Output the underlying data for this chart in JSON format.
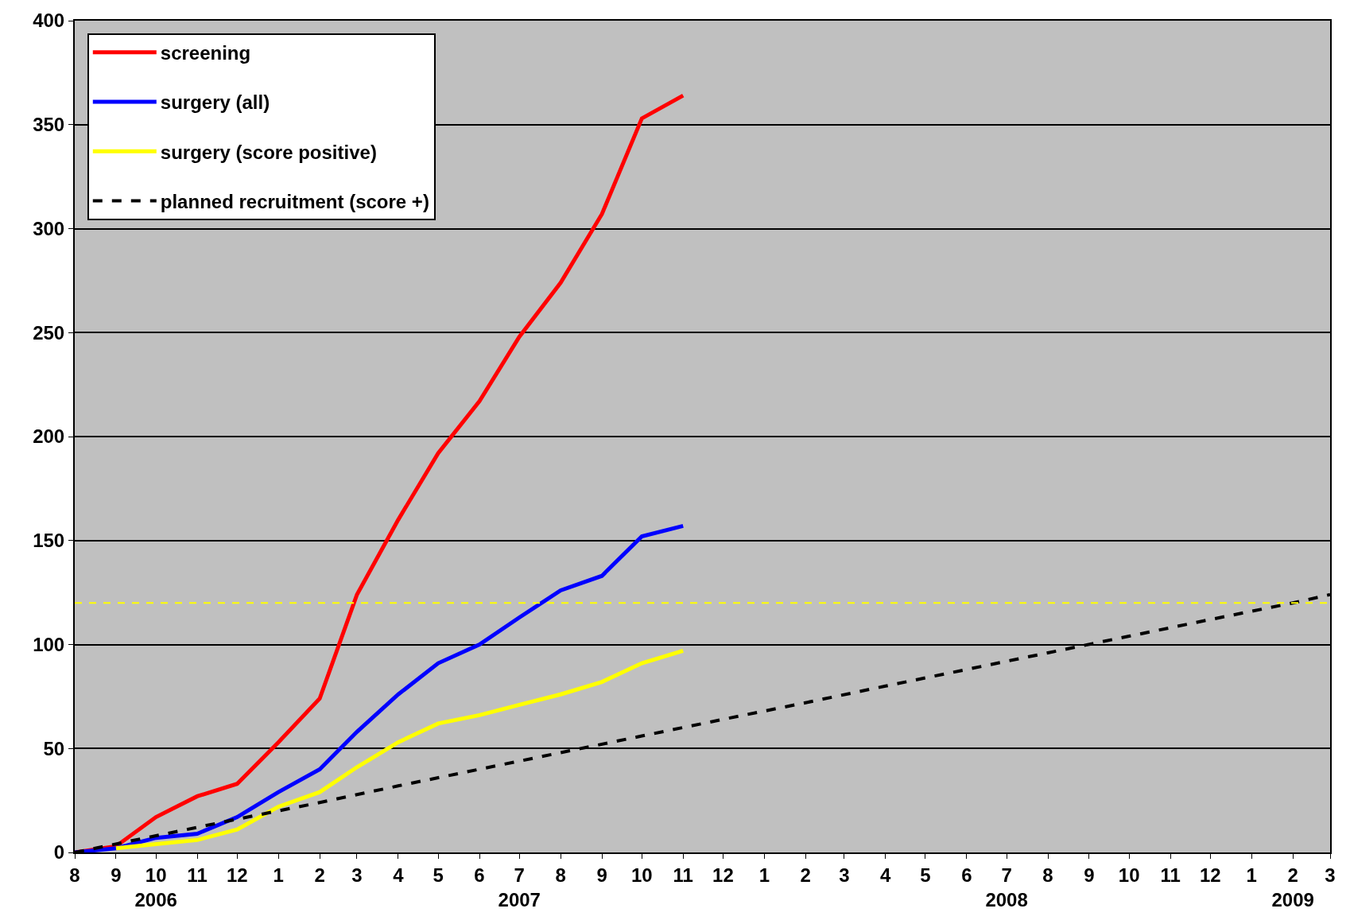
{
  "chart_data": {
    "type": "line",
    "x": [
      "2006-08",
      "2006-09",
      "2006-10",
      "2006-11",
      "2006-12",
      "2007-01",
      "2007-02",
      "2007-03",
      "2007-04",
      "2007-05",
      "2007-06",
      "2007-07",
      "2007-08",
      "2007-09",
      "2007-10",
      "2007-11"
    ],
    "series": [
      {
        "name": "screening",
        "color": "#ff0000",
        "values": [
          0,
          3,
          17,
          27,
          33,
          53,
          74,
          124,
          160,
          192,
          217,
          248,
          274,
          307,
          353,
          364
        ]
      },
      {
        "name": "surgery (all)",
        "color": "#0000ff",
        "values": [
          0,
          2,
          7,
          9,
          17,
          29,
          40,
          58,
          76,
          91,
          100,
          113,
          126,
          133,
          152,
          157
        ]
      },
      {
        "name": "surgery (score positive)",
        "color": "#ffff00",
        "values": [
          null,
          2,
          4,
          6,
          11,
          22,
          29,
          41,
          53,
          62,
          66,
          71,
          76,
          82,
          91,
          97
        ]
      },
      {
        "name": "planned recruitment (score +)",
        "color": "#000000",
        "line_style": "dashed",
        "x": [
          "2006-08",
          "2006-10",
          "2006-12",
          "2007-02",
          "2007-04",
          "2007-06",
          "2007-08",
          "2007-10",
          "2007-12",
          "2008-02",
          "2008-04",
          "2008-06",
          "2008-08",
          "2008-10",
          "2008-12",
          "2009-02",
          "2009-03"
        ],
        "values": [
          0,
          8,
          16,
          24,
          32,
          40,
          48,
          56,
          64,
          72,
          80,
          88,
          96,
          104,
          112,
          120,
          124
        ]
      }
    ],
    "ylim": [
      0,
      400
    ],
    "yticks": [
      0,
      50,
      100,
      150,
      200,
      250,
      300,
      350,
      400
    ],
    "xlim": [
      "2006-08",
      "2009-03"
    ],
    "xticks": [
      {
        "value": "2006-08",
        "label": "8"
      },
      {
        "value": "2006-09",
        "label": "9"
      },
      {
        "value": "2006-10",
        "label": "10\n2006"
      },
      {
        "value": "2006-11",
        "label": "11"
      },
      {
        "value": "2006-12",
        "label": "12"
      },
      {
        "value": "2007-01",
        "label": "1"
      },
      {
        "value": "2007-02",
        "label": "2"
      },
      {
        "value": "2007-03",
        "label": "3"
      },
      {
        "value": "2007-04",
        "label": "4"
      },
      {
        "value": "2007-05",
        "label": "5"
      },
      {
        "value": "2007-06",
        "label": "6"
      },
      {
        "value": "2007-07",
        "label": "7\n2007"
      },
      {
        "value": "2007-08",
        "label": "8"
      },
      {
        "value": "2007-09",
        "label": "9"
      },
      {
        "value": "2007-10",
        "label": "10"
      },
      {
        "value": "2007-11",
        "label": "11"
      },
      {
        "value": "2007-12",
        "label": "12"
      },
      {
        "value": "2008-01",
        "label": "1"
      },
      {
        "value": "2008-02",
        "label": "2"
      },
      {
        "value": "2008-03",
        "label": "3"
      },
      {
        "value": "2008-04",
        "label": "4"
      },
      {
        "value": "2008-05",
        "label": "5"
      },
      {
        "value": "2008-06",
        "label": "6"
      },
      {
        "value": "2008-07",
        "label": "7\n2008"
      },
      {
        "value": "2008-08",
        "label": "8"
      },
      {
        "value": "2008-09",
        "label": "9"
      },
      {
        "value": "2008-10",
        "label": "10"
      },
      {
        "value": "2008-11",
        "label": "11"
      },
      {
        "value": "2008-12",
        "label": "12"
      },
      {
        "value": "2009-01",
        "label": "1"
      },
      {
        "value": "2009-02",
        "label": "2\n2009"
      },
      {
        "value": "2009-03",
        "label": "3"
      }
    ],
    "ref_lines": [
      {
        "axis": "y",
        "value": 120,
        "color": "#ffff00",
        "line_style": "dashed"
      }
    ],
    "grid": "y",
    "legend": "top left",
    "marker": "none"
  }
}
